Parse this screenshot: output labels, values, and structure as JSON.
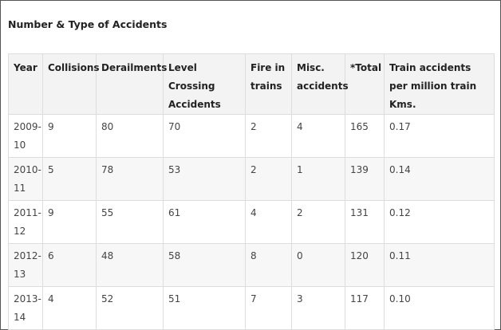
{
  "heading": "Number & Type of Accidents",
  "table": {
    "headers": [
      "Year",
      "Collisions",
      "Derailments",
      "Level Crossing Accidents",
      "Fire in trains",
      "Misc. accidents",
      "*Total",
      "Train accidents per million train Kms."
    ],
    "rows": [
      [
        "2009-10",
        "9",
        "80",
        "70",
        "2",
        "4",
        "165",
        "0.17"
      ],
      [
        "2010-11",
        "5",
        "78",
        "53",
        "2",
        "1",
        "139",
        "0.14"
      ],
      [
        "2011-12",
        "9",
        "55",
        "61",
        "4",
        "2",
        "131",
        "0.12"
      ],
      [
        "2012-13",
        "6",
        "48",
        "58",
        "8",
        "0",
        "120",
        "0.11"
      ],
      [
        "2013-14",
        "4",
        "52",
        "51",
        "7",
        "3",
        "117",
        "0.10"
      ]
    ]
  },
  "colors": {
    "header_bg": "#f3f3f3",
    "alt_row_bg": "#f7f7f7",
    "border": "#dddddd",
    "frame_border": "#555555"
  }
}
